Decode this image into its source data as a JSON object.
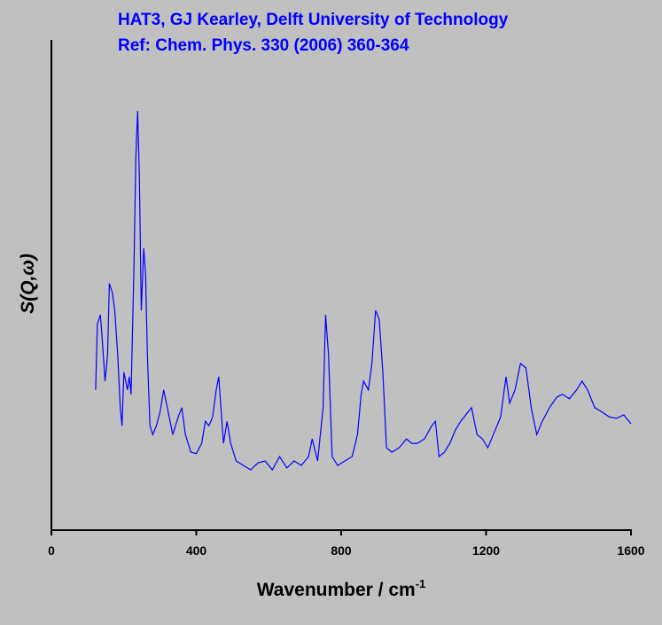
{
  "chart_data": {
    "type": "line",
    "title": [
      "HAT3, GJ Kearley, Delft University of Technology",
      "Ref: Chem. Phys. 330 (2006) 360-364"
    ],
    "xlabel": "Wavenumber / cm",
    "xlabel_superscript": "-1",
    "ylabel": "S(Q,ω)",
    "xlim": [
      0,
      1600
    ],
    "xticks": [
      0,
      400,
      800,
      1200,
      1600
    ],
    "ylim": [
      0,
      100
    ],
    "x": [
      122,
      127,
      135,
      140,
      148,
      155,
      160,
      168,
      175,
      183,
      190,
      195,
      200,
      210,
      215,
      220,
      228,
      233,
      238,
      243,
      248,
      255,
      260,
      265,
      272,
      280,
      290,
      300,
      310,
      320,
      335,
      350,
      360,
      370,
      385,
      400,
      415,
      425,
      435,
      445,
      455,
      462,
      468,
      475,
      485,
      495,
      510,
      530,
      550,
      570,
      590,
      610,
      630,
      650,
      670,
      690,
      710,
      720,
      735,
      750,
      757,
      765,
      775,
      790,
      810,
      830,
      845,
      855,
      862,
      875,
      885,
      895,
      905,
      915,
      925,
      940,
      960,
      980,
      995,
      1010,
      1030,
      1050,
      1060,
      1070,
      1085,
      1100,
      1115,
      1130,
      1150,
      1160,
      1175,
      1190,
      1205,
      1220,
      1240,
      1255,
      1265,
      1280,
      1295,
      1310,
      1325,
      1340,
      1355,
      1375,
      1395,
      1410,
      1430,
      1450,
      1465,
      1480,
      1500,
      1520,
      1540,
      1560,
      1580,
      1600
    ],
    "series": [
      {
        "color": "#0000ff",
        "values": [
          28.6,
          42.1,
          43.9,
          39.4,
          30.4,
          35.8,
          50.3,
          48.5,
          44.8,
          35.8,
          25.0,
          21.3,
          32.2,
          28.6,
          31.3,
          27.7,
          53.9,
          75.6,
          85.5,
          72.0,
          44.8,
          57.5,
          52.1,
          35.8,
          21.3,
          19.5,
          21.3,
          24.1,
          28.6,
          25.0,
          19.5,
          23.1,
          25.0,
          19.5,
          15.9,
          15.6,
          17.7,
          22.2,
          21.3,
          23.1,
          28.6,
          31.3,
          25.0,
          17.7,
          22.2,
          17.7,
          14.1,
          13.2,
          12.3,
          13.7,
          14.1,
          12.3,
          15.0,
          12.7,
          14.1,
          13.2,
          15.0,
          18.6,
          14.1,
          25.0,
          43.9,
          35.8,
          15.0,
          13.2,
          14.1,
          15.0,
          19.5,
          27.7,
          30.4,
          28.6,
          34.0,
          44.8,
          43.0,
          32.2,
          16.8,
          15.9,
          16.8,
          18.6,
          17.7,
          17.7,
          18.6,
          21.3,
          22.2,
          15.0,
          15.9,
          17.7,
          20.4,
          22.2,
          24.1,
          25.0,
          19.5,
          18.6,
          16.8,
          19.5,
          23.1,
          31.3,
          25.9,
          28.6,
          34.0,
          33.1,
          24.8,
          19.5,
          22.2,
          25.0,
          27.1,
          27.7,
          26.8,
          28.6,
          30.4,
          28.6,
          25.0,
          24.1,
          23.1,
          22.8,
          23.5,
          21.7
        ]
      }
    ]
  }
}
